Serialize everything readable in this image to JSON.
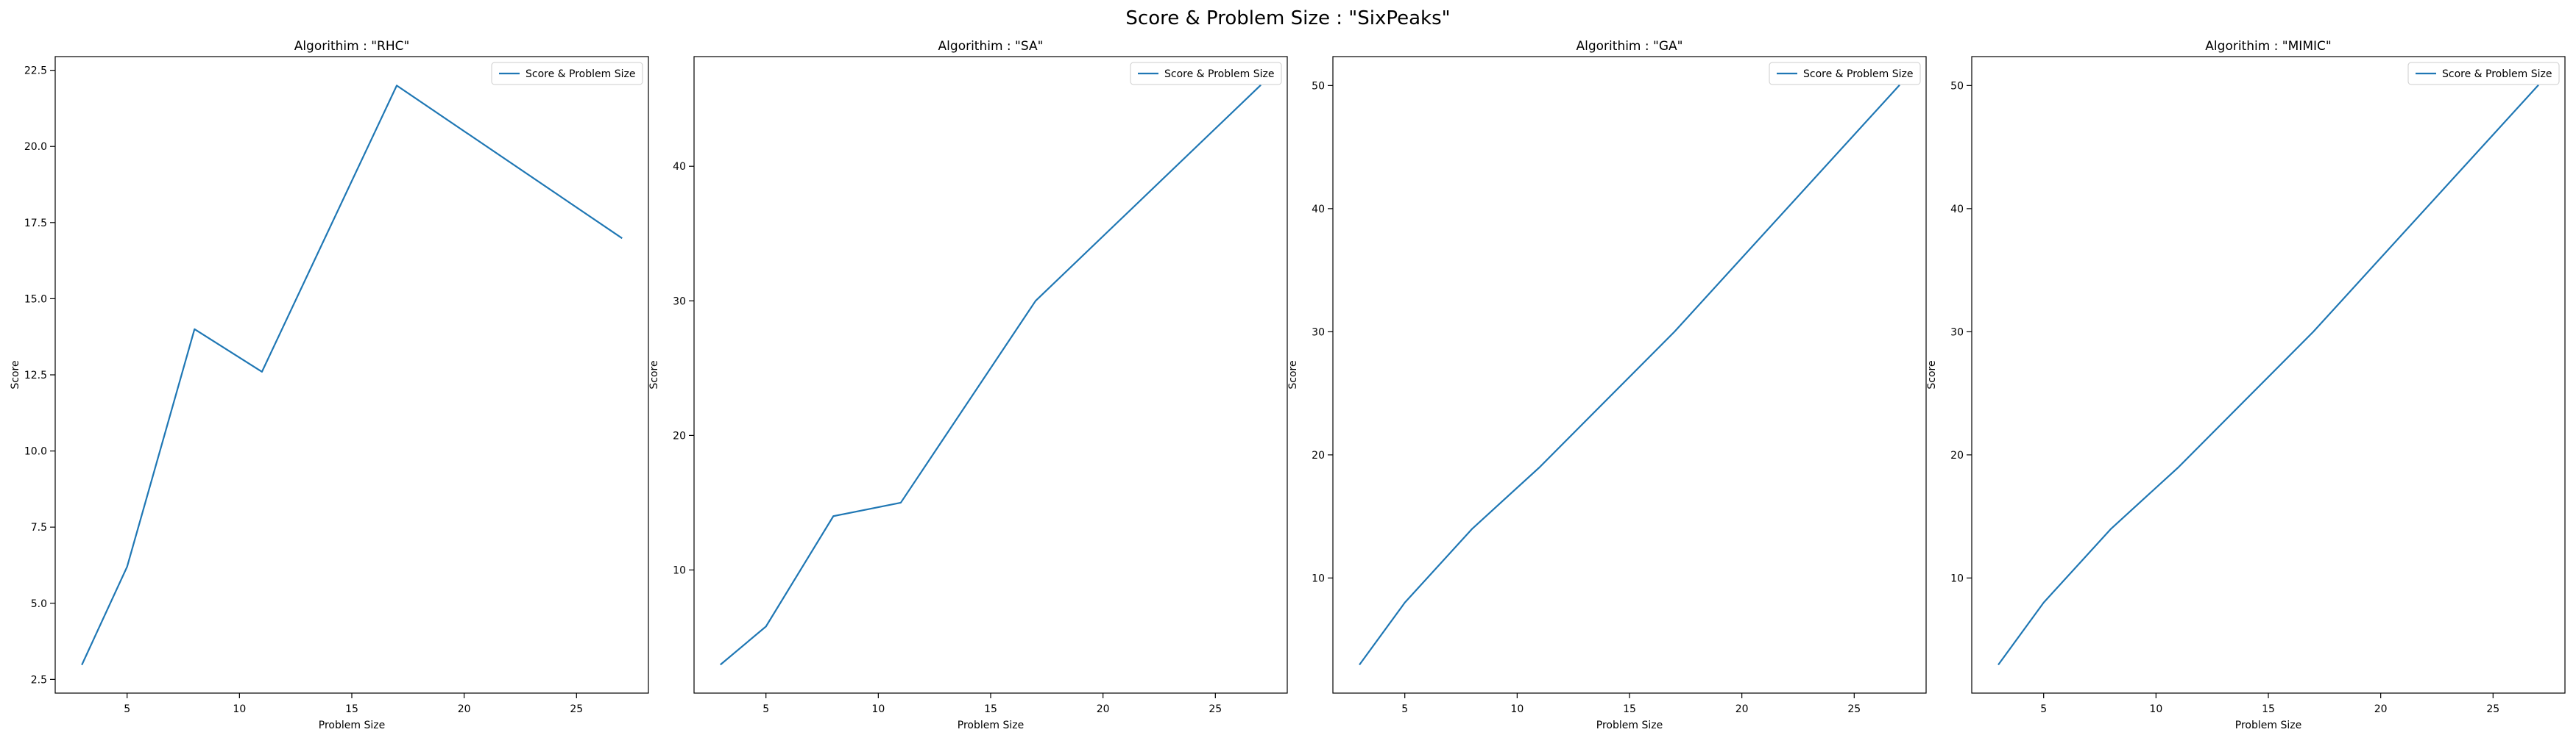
{
  "figure": {
    "title": "Score & Problem Size : \"SixPeaks\""
  },
  "chart_data": [
    {
      "type": "line",
      "title": "Algorithim : \"RHC\"",
      "xlabel": "Problem Size",
      "ylabel": "Score",
      "xlim": [
        1.8,
        28.2
      ],
      "ylim": [
        2.05,
        22.95
      ],
      "xticks": [
        5,
        10,
        15,
        20,
        25
      ],
      "yticks": [
        2.5,
        5.0,
        7.5,
        10.0,
        12.5,
        15.0,
        17.5,
        20.0,
        22.5
      ],
      "ytick_labels": [
        "2.5",
        "5.0",
        "7.5",
        "10.0",
        "12.5",
        "15.0",
        "17.5",
        "20.0",
        "22.5"
      ],
      "legend_position": "upper right",
      "grid": false,
      "color": "#1f77b4",
      "series": [
        {
          "name": "Score & Problem Size",
          "x": [
            3,
            5,
            8,
            11,
            17,
            27
          ],
          "y": [
            3.0,
            6.2,
            14.0,
            12.6,
            22.0,
            17.0
          ]
        }
      ]
    },
    {
      "type": "line",
      "title": "Algorithim : \"SA\"",
      "xlabel": "Problem Size",
      "ylabel": "Score",
      "xlim": [
        1.8,
        28.2
      ],
      "ylim": [
        0.85,
        48.15
      ],
      "xticks": [
        5,
        10,
        15,
        20,
        25
      ],
      "yticks": [
        10,
        20,
        30,
        40
      ],
      "ytick_labels": [
        "10",
        "20",
        "30",
        "40"
      ],
      "legend_position": "upper right",
      "grid": false,
      "color": "#1f77b4",
      "series": [
        {
          "name": "Score & Problem Size",
          "x": [
            3,
            5,
            8,
            11,
            17,
            27
          ],
          "y": [
            3,
            5.8,
            14,
            15,
            30,
            46
          ]
        }
      ]
    },
    {
      "type": "line",
      "title": "Algorithim : \"GA\"",
      "xlabel": "Problem Size",
      "ylabel": "Score",
      "xlim": [
        1.8,
        28.2
      ],
      "ylim": [
        0.65,
        52.35
      ],
      "xticks": [
        5,
        10,
        15,
        20,
        25
      ],
      "yticks": [
        10,
        20,
        30,
        40,
        50
      ],
      "ytick_labels": [
        "10",
        "20",
        "30",
        "40",
        "50"
      ],
      "legend_position": "upper right",
      "grid": false,
      "color": "#1f77b4",
      "series": [
        {
          "name": "Score & Problem Size",
          "x": [
            3,
            5,
            8,
            11,
            17,
            27
          ],
          "y": [
            3,
            8,
            14,
            19,
            30,
            50
          ]
        }
      ]
    },
    {
      "type": "line",
      "title": "Algorithim : \"MIMIC\"",
      "xlabel": "Problem Size",
      "ylabel": "Score",
      "xlim": [
        1.8,
        28.2
      ],
      "ylim": [
        0.65,
        52.35
      ],
      "xticks": [
        5,
        10,
        15,
        20,
        25
      ],
      "yticks": [
        10,
        20,
        30,
        40,
        50
      ],
      "ytick_labels": [
        "10",
        "20",
        "30",
        "40",
        "50"
      ],
      "legend_position": "upper right",
      "grid": false,
      "color": "#1f77b4",
      "series": [
        {
          "name": "Score & Problem Size",
          "x": [
            3,
            5,
            8,
            11,
            17,
            27
          ],
          "y": [
            3,
            8,
            14,
            19,
            30,
            50
          ]
        }
      ]
    }
  ]
}
